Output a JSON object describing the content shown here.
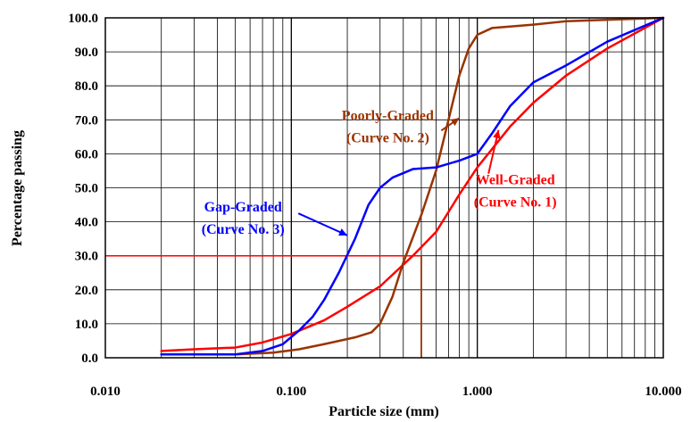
{
  "chart_data": {
    "type": "line",
    "xscale": "log",
    "xlim": [
      0.01,
      10
    ],
    "ylim": [
      0,
      100
    ],
    "xlabel": "Particle size (mm)",
    "ylabel": "Percentage passing",
    "xticks": [
      "0.010",
      "0.100",
      "1.000",
      "10.000"
    ],
    "yticks": [
      "0.0",
      "10.0",
      "20.0",
      "30.0",
      "40.0",
      "50.0",
      "60.0",
      "70.0",
      "80.0",
      "90.0",
      "100.0"
    ],
    "grid": true,
    "series": [
      {
        "name": "Well-Graded (Curve No. 1)",
        "color": "#ff0000",
        "points": [
          [
            0.02,
            2
          ],
          [
            0.03,
            2.5
          ],
          [
            0.05,
            3
          ],
          [
            0.07,
            4.5
          ],
          [
            0.1,
            7
          ],
          [
            0.15,
            11
          ],
          [
            0.2,
            15
          ],
          [
            0.3,
            21
          ],
          [
            0.45,
            30
          ],
          [
            0.6,
            37
          ],
          [
            0.8,
            48
          ],
          [
            1.0,
            56
          ],
          [
            1.5,
            68
          ],
          [
            2.0,
            75
          ],
          [
            3.0,
            83
          ],
          [
            5.0,
            91
          ],
          [
            10.0,
            100
          ]
        ]
      },
      {
        "name": "Poorly-Graded (Curve No. 2)",
        "color": "#993300",
        "points": [
          [
            0.02,
            1
          ],
          [
            0.05,
            1
          ],
          [
            0.08,
            1.5
          ],
          [
            0.11,
            2.5
          ],
          [
            0.15,
            4
          ],
          [
            0.22,
            6
          ],
          [
            0.27,
            7.5
          ],
          [
            0.3,
            10
          ],
          [
            0.35,
            18
          ],
          [
            0.4,
            28
          ],
          [
            0.5,
            42
          ],
          [
            0.6,
            55
          ],
          [
            0.7,
            70
          ],
          [
            0.8,
            83
          ],
          [
            0.9,
            91
          ],
          [
            1.0,
            95
          ],
          [
            1.2,
            97
          ],
          [
            2.0,
            98
          ],
          [
            3.0,
            99
          ],
          [
            10.0,
            100
          ]
        ]
      },
      {
        "name": "Gap-Graded (Curve No. 3)",
        "color": "#0000ff",
        "points": [
          [
            0.02,
            1
          ],
          [
            0.05,
            1
          ],
          [
            0.07,
            2
          ],
          [
            0.09,
            4
          ],
          [
            0.11,
            8
          ],
          [
            0.13,
            12
          ],
          [
            0.15,
            17
          ],
          [
            0.18,
            25
          ],
          [
            0.22,
            35
          ],
          [
            0.26,
            45
          ],
          [
            0.3,
            50
          ],
          [
            0.35,
            53
          ],
          [
            0.45,
            55.5
          ],
          [
            0.6,
            56
          ],
          [
            0.8,
            58
          ],
          [
            1.0,
            60
          ],
          [
            1.2,
            66
          ],
          [
            1.5,
            74
          ],
          [
            2.0,
            81
          ],
          [
            3.0,
            86
          ],
          [
            5.0,
            93
          ],
          [
            10.0,
            100
          ]
        ]
      }
    ],
    "reference": {
      "y": 30,
      "x": 0.5,
      "color": "#ff0000",
      "drop_color": "#993300"
    },
    "annotations": [
      {
        "id": "poorly",
        "lines": [
          "Poorly-Graded",
          "(Curve No. 2)"
        ],
        "color": "#993300",
        "at": [
          0.33,
          70
        ],
        "arrow_to": [
          0.8,
          70.5
        ]
      },
      {
        "id": "well",
        "lines": [
          "Well-Graded",
          "(Curve No. 1)"
        ],
        "color": "#ff0000",
        "at": [
          1.6,
          51
        ],
        "arrow_to": [
          1.3,
          67
        ]
      },
      {
        "id": "gap",
        "lines": [
          "Gap-Graded",
          "(Curve No. 3)"
        ],
        "color": "#0000ff",
        "at": [
          0.055,
          43
        ],
        "arrow_to": [
          0.2,
          36
        ]
      }
    ]
  }
}
